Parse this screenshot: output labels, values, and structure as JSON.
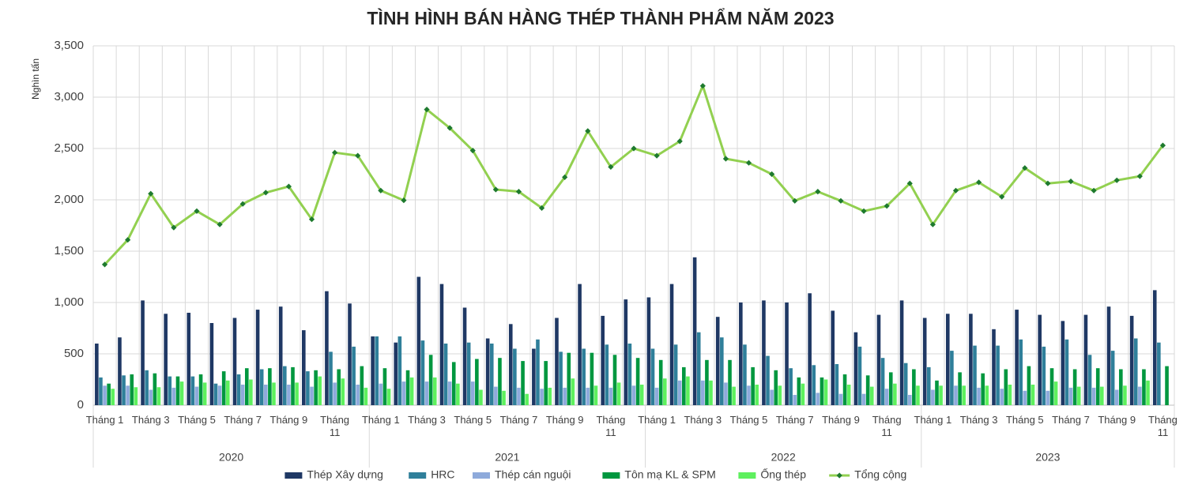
{
  "chart_data": {
    "type": "bar",
    "title": "TÌNH HÌNH BÁN HÀNG THÉP THÀNH PHẨM NĂM 2023",
    "y_label": "Nghìn tấn",
    "categories": [
      "Tháng 1",
      null,
      "Tháng 3",
      null,
      "Tháng 5",
      null,
      "Tháng 7",
      null,
      "Tháng 9",
      null,
      "Tháng 11",
      null,
      "Tháng 1",
      null,
      "Tháng 3",
      null,
      "Tháng 5",
      null,
      "Tháng 7",
      null,
      "Tháng 9",
      null,
      "Tháng 11",
      null,
      "Tháng 1",
      null,
      "Tháng 3",
      null,
      "Tháng 5",
      null,
      "Tháng 7",
      null,
      "Tháng 9",
      null,
      "Tháng 11",
      null,
      "Tháng 1",
      null,
      "Tháng 3",
      null,
      "Tháng 5",
      null,
      "Tháng 7",
      null,
      "Tháng 9",
      null,
      "Tháng 11"
    ],
    "groups": [
      {
        "name": "2020",
        "months": 12
      },
      {
        "name": "2021",
        "months": 12
      },
      {
        "name": "2022",
        "months": 12
      },
      {
        "name": "2023",
        "months": 11
      }
    ],
    "ylim": [
      0,
      3500
    ],
    "yticks": [
      0,
      500,
      {
        "value": 1000,
        "label": "1,000"
      },
      {
        "value": 1500,
        "label": "1,500"
      },
      {
        "value": 2000,
        "label": "2,000"
      },
      {
        "value": 2500,
        "label": "2,500"
      },
      {
        "value": 3000,
        "label": "3,000"
      },
      {
        "value": 3500,
        "label": "3,500"
      }
    ],
    "grid": true,
    "legend": "bottom",
    "series": [
      {
        "name": "Thép Xây dựng",
        "type": "bar",
        "color": "#1f3864",
        "values": [
          600,
          660,
          1020,
          890,
          900,
          800,
          850,
          930,
          960,
          730,
          1110,
          990,
          670,
          610,
          1250,
          1180,
          950,
          650,
          790,
          550,
          850,
          1180,
          870,
          1030,
          1050,
          1180,
          1440,
          860,
          1000,
          1020,
          1000,
          1090,
          920,
          710,
          880,
          1020,
          850,
          890,
          890,
          740,
          930,
          880,
          820,
          880,
          960,
          870,
          1120
        ]
      },
      {
        "name": "HRC",
        "type": "bar",
        "color": "#2f7f9a",
        "values": [
          270,
          290,
          340,
          280,
          280,
          210,
          300,
          350,
          380,
          330,
          520,
          570,
          670,
          670,
          630,
          600,
          610,
          600,
          550,
          640,
          520,
          550,
          590,
          600,
          550,
          590,
          710,
          660,
          590,
          480,
          360,
          390,
          400,
          570,
          460,
          410,
          370,
          530,
          580,
          580,
          640,
          570,
          640,
          490,
          530,
          650,
          610
        ]
      },
      {
        "name": "Thép cán nguội",
        "type": "bar",
        "color": "#8eaadb",
        "values": [
          190,
          190,
          150,
          170,
          180,
          190,
          200,
          200,
          200,
          180,
          220,
          200,
          210,
          230,
          230,
          230,
          230,
          180,
          170,
          160,
          170,
          170,
          170,
          190,
          170,
          240,
          240,
          220,
          190,
          150,
          100,
          120,
          110,
          110,
          160,
          100,
          150,
          190,
          170,
          160,
          140,
          140,
          170,
          170,
          150,
          180,
          null
        ]
      },
      {
        "name": "Tôn mạ KL & SPM",
        "type": "bar",
        "color": "#00973f",
        "values": [
          210,
          300,
          310,
          280,
          300,
          330,
          360,
          360,
          370,
          340,
          350,
          380,
          360,
          340,
          490,
          420,
          450,
          460,
          430,
          430,
          510,
          510,
          490,
          460,
          440,
          370,
          440,
          440,
          370,
          340,
          270,
          270,
          300,
          290,
          320,
          350,
          240,
          320,
          310,
          350,
          380,
          360,
          350,
          360,
          350,
          350,
          380
        ]
      },
      {
        "name": "Ống thép",
        "type": "bar",
        "color": "#5ef05e",
        "values": [
          160,
          175,
          175,
          230,
          220,
          240,
          250,
          220,
          220,
          280,
          260,
          170,
          160,
          270,
          270,
          210,
          150,
          140,
          110,
          170,
          260,
          190,
          220,
          200,
          260,
          280,
          240,
          180,
          200,
          190,
          210,
          250,
          200,
          180,
          210,
          190,
          190,
          190,
          190,
          200,
          200,
          230,
          180,
          180,
          190,
          240,
          null
        ]
      },
      {
        "name": "Tổng cộng",
        "type": "line",
        "color": "#92d050",
        "marker_color": "#1e7a2e",
        "values": [
          1370,
          1610,
          2060,
          1730,
          1890,
          1760,
          1960,
          2070,
          2130,
          1810,
          2460,
          2430,
          2090,
          1995,
          2880,
          2700,
          2480,
          2100,
          2080,
          1920,
          2220,
          2670,
          2320,
          2500,
          2430,
          2570,
          3110,
          2400,
          2360,
          2250,
          1990,
          2080,
          1990,
          1890,
          1940,
          2160,
          1760,
          2090,
          2170,
          2030,
          2310,
          2160,
          2180,
          2090,
          2190,
          2230,
          2530
        ]
      }
    ]
  }
}
